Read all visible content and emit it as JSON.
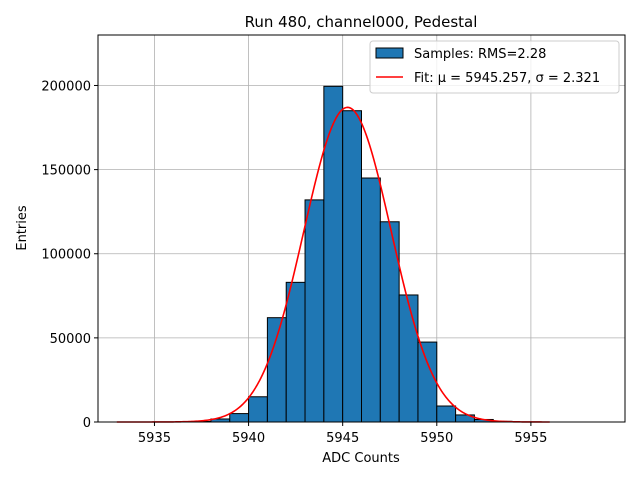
{
  "chart_data": {
    "type": "bar",
    "title": "Run 480, channel000, Pedestal",
    "xlabel": "ADC Counts",
    "ylabel": "Entries",
    "xlim": [
      5932,
      5960
    ],
    "ylim": [
      0,
      230000
    ],
    "xticks": [
      5935,
      5940,
      5945,
      5950,
      5955
    ],
    "yticks": [
      0,
      50000,
      100000,
      150000,
      200000
    ],
    "grid": true,
    "legend_position": "top-right",
    "histogram": {
      "name": "Samples: RMS=2.28",
      "color": "#1f77b4",
      "bin_width": 1,
      "bins": [
        {
          "x": 5937,
          "value": 300
        },
        {
          "x": 5938,
          "value": 1800
        },
        {
          "x": 5939,
          "value": 5000
        },
        {
          "x": 5940,
          "value": 15000
        },
        {
          "x": 5941,
          "value": 62000
        },
        {
          "x": 5942,
          "value": 83000
        },
        {
          "x": 5943,
          "value": 132000
        },
        {
          "x": 5944,
          "value": 199500
        },
        {
          "x": 5945,
          "value": 185000
        },
        {
          "x": 5946,
          "value": 145000
        },
        {
          "x": 5947,
          "value": 119000
        },
        {
          "x": 5948,
          "value": 75500
        },
        {
          "x": 5949,
          "value": 47500
        },
        {
          "x": 5950,
          "value": 9500
        },
        {
          "x": 5951,
          "value": 4200
        },
        {
          "x": 5952,
          "value": 1500
        },
        {
          "x": 5953,
          "value": 400
        }
      ]
    },
    "fit": {
      "name": "Fit: μ = 5945.257, σ = 2.321",
      "color": "#ff0000",
      "mu": 5945.257,
      "sigma": 2.321,
      "amplitude": 187000,
      "x_range": [
        5933,
        5956
      ]
    }
  }
}
